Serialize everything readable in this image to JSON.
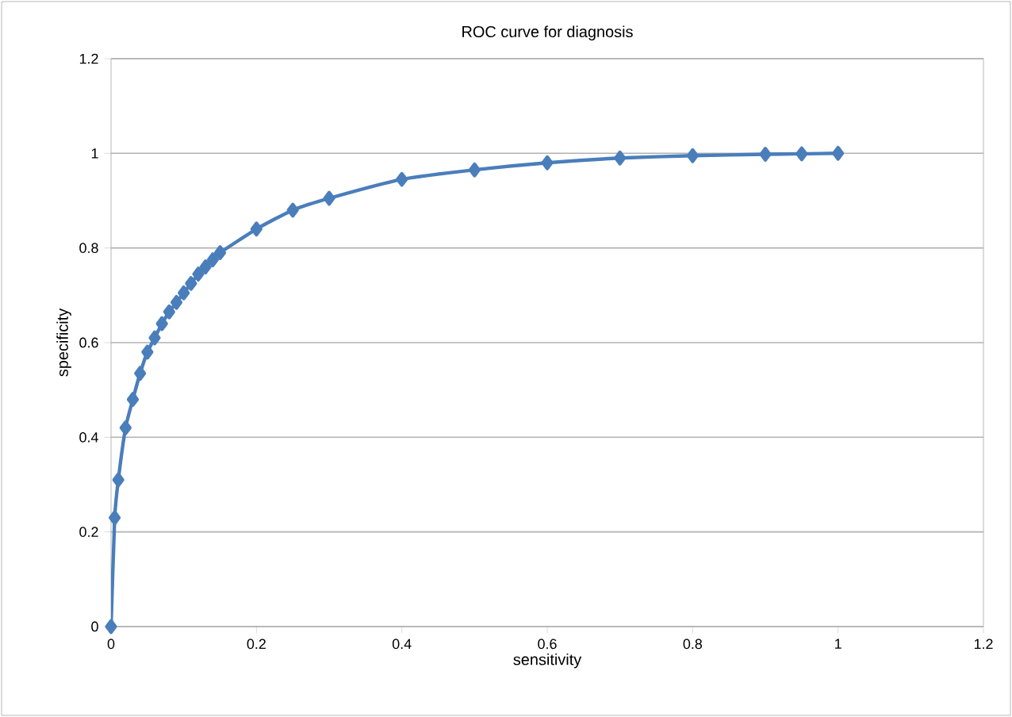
{
  "chart_data": {
    "type": "line",
    "title": "ROC curve for diagnosis",
    "xlabel": "sensitivity",
    "ylabel": "specificity",
    "x": [
      0,
      0.005,
      0.01,
      0.02,
      0.03,
      0.04,
      0.05,
      0.06,
      0.07,
      0.08,
      0.09,
      0.1,
      0.11,
      0.12,
      0.13,
      0.14,
      0.15,
      0.2,
      0.25,
      0.3,
      0.4,
      0.5,
      0.6,
      0.7,
      0.8,
      0.9,
      0.95,
      1
    ],
    "series": [
      {
        "color": "#4a7ebb",
        "values": [
          0,
          0.23,
          0.31,
          0.42,
          0.48,
          0.535,
          0.58,
          0.61,
          0.64,
          0.665,
          0.685,
          0.705,
          0.725,
          0.745,
          0.76,
          0.775,
          0.79,
          0.84,
          0.88,
          0.905,
          0.945,
          0.965,
          0.98,
          0.99,
          0.995,
          0.998,
          0.999,
          1
        ]
      }
    ],
    "xlim": [
      0,
      1.2
    ],
    "ylim": [
      0,
      1.2
    ],
    "xticks": [
      0,
      0.2,
      0.4,
      0.6,
      0.8,
      1,
      1.2
    ],
    "yticks": [
      0,
      0.2,
      0.4,
      0.6,
      0.8,
      1,
      1.2
    ],
    "grid": "y",
    "marker": "diamond",
    "line_style": "solid"
  }
}
